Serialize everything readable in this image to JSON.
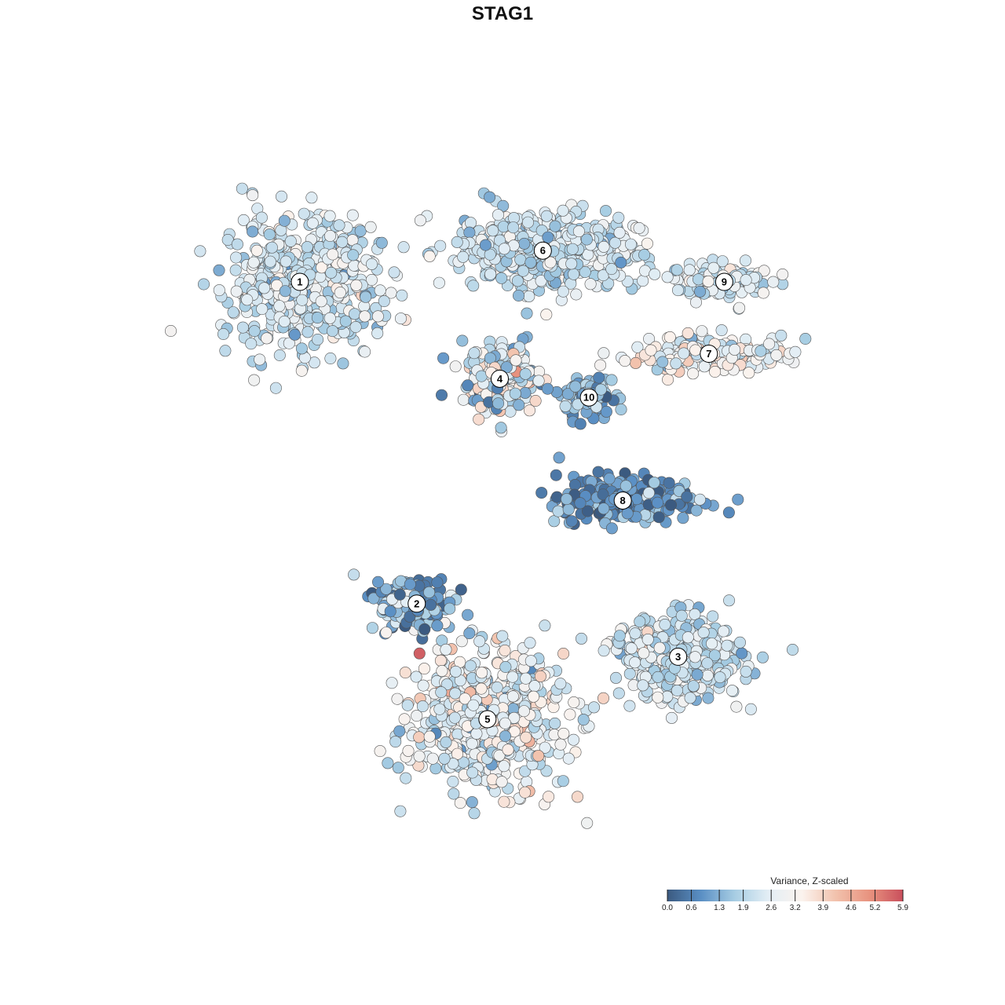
{
  "chart_data": {
    "type": "scatter",
    "title": "STAG1",
    "xlabel": "",
    "ylabel": "",
    "grid": false,
    "legend_position": "bottom-right",
    "colorbar": {
      "title": "Variance, Z-scaled",
      "ticks": [
        "0.0",
        "0.6",
        "1.3",
        "1.9",
        "2.6",
        "3.2",
        "3.9",
        "4.6",
        "5.2",
        "5.9"
      ],
      "min": 0.0,
      "max": 5.9,
      "colors": [
        "#3b5a80",
        "#5a8fc4",
        "#a7cde3",
        "#e3eef5",
        "#fbf3ee",
        "#f2c2ad",
        "#e8937f",
        "#c94f5c"
      ]
    },
    "clusters": [
      {
        "label": "1",
        "x": -7.1,
        "y": 7.5,
        "spread": [
          2.3,
          1.9
        ],
        "count": 520,
        "mean": 2.3,
        "sd": 0.55
      },
      {
        "label": "2",
        "x": -3.3,
        "y": -2.8,
        "spread": [
          1.1,
          0.8
        ],
        "count": 170,
        "mean": 1.3,
        "sd": 0.9
      },
      {
        "label": "3",
        "x": 5.2,
        "y": -4.5,
        "spread": [
          1.9,
          1.2
        ],
        "count": 340,
        "mean": 2.2,
        "sd": 0.5
      },
      {
        "label": "4",
        "x": -0.6,
        "y": 4.4,
        "spread": [
          1.1,
          1.0
        ],
        "count": 230,
        "mean": 2.5,
        "sd": 1.0
      },
      {
        "label": "5",
        "x": -1.0,
        "y": -6.5,
        "spread": [
          2.3,
          2.0
        ],
        "count": 620,
        "mean": 2.7,
        "sd": 0.7
      },
      {
        "label": "6",
        "x": 0.8,
        "y": 8.5,
        "spread": [
          2.8,
          1.1
        ],
        "count": 500,
        "mean": 2.3,
        "sd": 0.5
      },
      {
        "label": "7",
        "x": 6.2,
        "y": 5.2,
        "spread": [
          2.3,
          0.5
        ],
        "count": 180,
        "mean": 2.9,
        "sd": 0.7
      },
      {
        "label": "8",
        "x": 3.4,
        "y": 0.5,
        "spread": [
          1.9,
          0.7
        ],
        "count": 260,
        "mean": 0.9,
        "sd": 0.6
      },
      {
        "label": "9",
        "x": 6.7,
        "y": 7.5,
        "spread": [
          1.4,
          0.5
        ],
        "count": 130,
        "mean": 2.4,
        "sd": 0.5
      },
      {
        "label": "10",
        "x": 2.3,
        "y": 3.8,
        "spread": [
          0.7,
          0.6
        ],
        "count": 90,
        "mean": 1.4,
        "sd": 0.6
      }
    ],
    "xlim": [
      -12,
      12
    ],
    "ylim": [
      -11,
      12
    ]
  }
}
